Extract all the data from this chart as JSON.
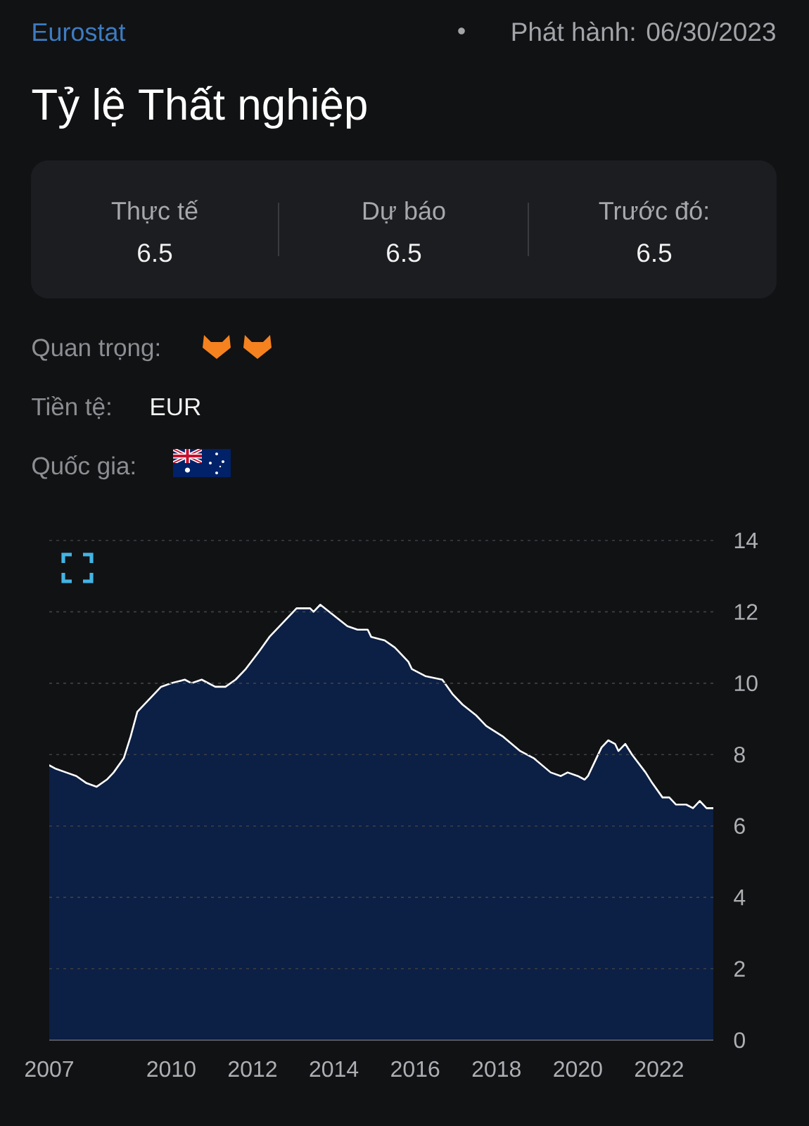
{
  "chart_data": {
    "type": "area",
    "title": "Tỷ lệ Thất nghiệp",
    "annotations": [
      "Eurostat",
      "Phát hành: 06/30/2023",
      "Thực tế",
      "6.5",
      "Dự báo",
      "6.5",
      "Trước đó:",
      "6.5",
      "Quan trọng:",
      "Tiền tệ:",
      "EUR",
      "Quốc gia:"
    ],
    "x": [
      "2007-01",
      "2007-03",
      "2007-06",
      "2007-09",
      "2007-12",
      "2008-03",
      "2008-06",
      "2008-08",
      "2008-11",
      "2009-01",
      "2009-03",
      "2009-07",
      "2009-10",
      "2010-01",
      "2010-05",
      "2010-07",
      "2010-10",
      "2011-02",
      "2011-05",
      "2011-08",
      "2011-11",
      "2012-03",
      "2012-06",
      "2012-10",
      "2013-02",
      "2013-06",
      "2013-07",
      "2013-09",
      "2014-01",
      "2014-05",
      "2014-08",
      "2014-11",
      "2014-12",
      "2015-04",
      "2015-07",
      "2015-08",
      "2015-11",
      "2015-12",
      "2016-04",
      "2016-09",
      "2016-12",
      "2017-03",
      "2017-07",
      "2017-10",
      "2018-03",
      "2018-08",
      "2018-12",
      "2019-05",
      "2019-08",
      "2019-10",
      "2020-01",
      "2020-03",
      "2020-04",
      "2020-06",
      "2020-08",
      "2020-10",
      "2020-12",
      "2021-01",
      "2021-03",
      "2021-05",
      "2021-09",
      "2021-11",
      "2022-02",
      "2022-04",
      "2022-06",
      "2022-09",
      "2022-11",
      "2023-01",
      "2023-03",
      "2023-05"
    ],
    "values": [
      7.7,
      7.6,
      7.5,
      7.4,
      7.2,
      7.1,
      7.3,
      7.5,
      7.9,
      8.5,
      9.2,
      9.6,
      9.9,
      10.0,
      10.1,
      10.0,
      10.1,
      9.9,
      9.9,
      10.1,
      10.4,
      10.9,
      11.3,
      11.7,
      12.1,
      12.1,
      12.0,
      12.2,
      11.9,
      11.6,
      11.5,
      11.5,
      11.3,
      11.2,
      11.0,
      10.9,
      10.6,
      10.4,
      10.2,
      10.1,
      9.7,
      9.4,
      9.1,
      8.8,
      8.5,
      8.1,
      7.9,
      7.5,
      7.4,
      7.5,
      7.4,
      7.3,
      7.4,
      7.8,
      8.2,
      8.4,
      8.3,
      8.1,
      8.3,
      8.0,
      7.5,
      7.2,
      6.8,
      6.8,
      6.6,
      6.6,
      6.5,
      6.7,
      6.5,
      6.5
    ],
    "color": "#0c1f44",
    "xlim": [
      "2007-01",
      "2023-05"
    ],
    "xticks": [
      "2007",
      "2010",
      "2012",
      "2014",
      "2016",
      "2018",
      "2020",
      "2022"
    ],
    "ylim": [
      0,
      14
    ],
    "yticks": [
      0,
      2,
      4,
      6,
      8,
      10,
      12,
      14
    ],
    "grid": "y"
  }
}
